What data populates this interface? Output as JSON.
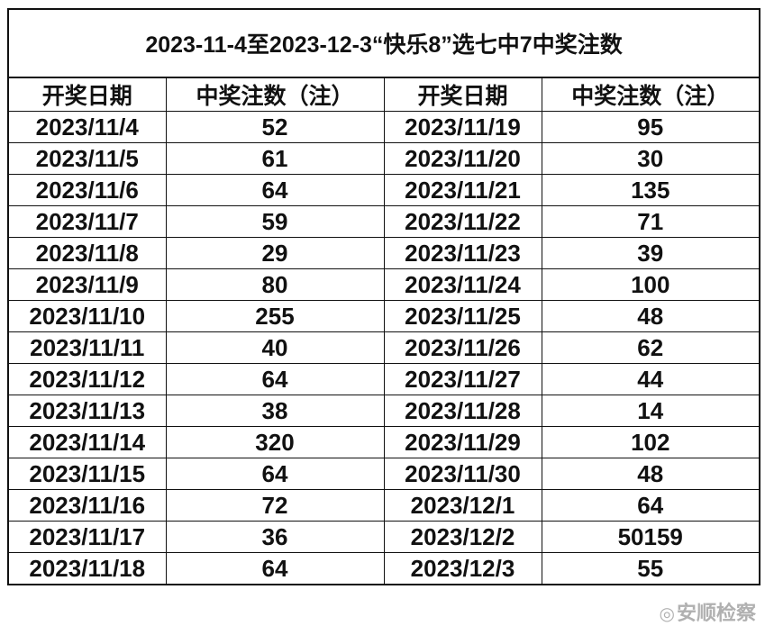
{
  "title": "2023-11-4至2023-12-3“快乐8”选七中7中奖注数",
  "headers": [
    "开奖日期",
    "中奖注数（注）",
    "开奖日期",
    "中奖注数（注）"
  ],
  "rows": [
    [
      "2023/11/4",
      "52",
      "2023/11/19",
      "95"
    ],
    [
      "2023/11/5",
      "61",
      "2023/11/20",
      "30"
    ],
    [
      "2023/11/6",
      "64",
      "2023/11/21",
      "135"
    ],
    [
      "2023/11/7",
      "59",
      "2023/11/22",
      "71"
    ],
    [
      "2023/11/8",
      "29",
      "2023/11/23",
      "39"
    ],
    [
      "2023/11/9",
      "80",
      "2023/11/24",
      "100"
    ],
    [
      "2023/11/10",
      "255",
      "2023/11/25",
      "48"
    ],
    [
      "2023/11/11",
      "40",
      "2023/11/26",
      "62"
    ],
    [
      "2023/11/12",
      "64",
      "2023/11/27",
      "44"
    ],
    [
      "2023/11/13",
      "38",
      "2023/11/28",
      "14"
    ],
    [
      "2023/11/14",
      "320",
      "2023/11/29",
      "102"
    ],
    [
      "2023/11/15",
      "64",
      "2023/11/30",
      "48"
    ],
    [
      "2023/11/16",
      "72",
      "2023/12/1",
      "64"
    ],
    [
      "2023/11/17",
      "36",
      "2023/12/2",
      "50159"
    ],
    [
      "2023/11/18",
      "64",
      "2023/12/3",
      "55"
    ]
  ],
  "watermark": {
    "icon": "weibo-logo-icon",
    "text": "安顺检察"
  }
}
